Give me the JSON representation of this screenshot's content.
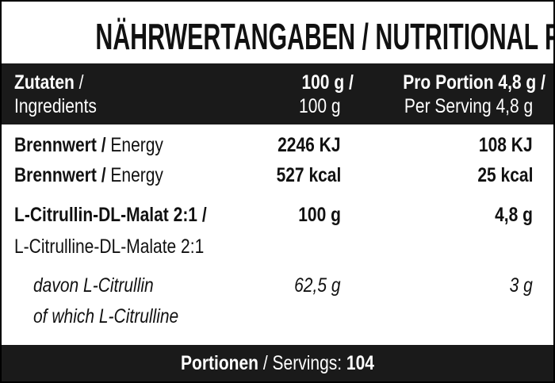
{
  "title": "NÄHRWERTANGABEN / NUTRITIONAL FACTS",
  "table": {
    "header": {
      "label": {
        "de": "Zutaten",
        "sep": "/",
        "en": "Ingredients"
      },
      "per100": {
        "de": "100 g /",
        "en": "100 g"
      },
      "perServing": {
        "de": "Pro Portion 4,8 g /",
        "en": "Per Serving 4,8 g"
      }
    },
    "rows": [
      {
        "de": "Brennwert",
        "sep": "/",
        "en": "Energy",
        "per100": "2246 KJ",
        "perServing": "108 KJ"
      },
      {
        "de": "Brennwert",
        "sep": "/",
        "en": "Energy",
        "per100": "527 kcal",
        "perServing": "25 kcal"
      },
      {
        "de": "L-Citrullin-DL-Malat 2:1",
        "sep": "/",
        "en": "L-Citrulline-DL-Malate 2:1",
        "per100": "100 g",
        "perServing": "4,8 g"
      },
      {
        "de": "davon L-Citrullin",
        "en": "of which L-Citrulline",
        "per100": "62,5 g",
        "perServing": "3 g"
      }
    ]
  },
  "footer": {
    "de": "Portionen",
    "sep": "/",
    "en": "Servings:",
    "value": "104"
  }
}
